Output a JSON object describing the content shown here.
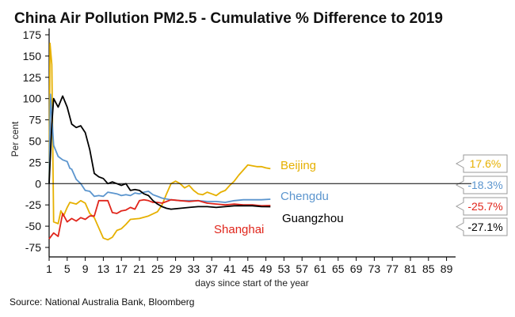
{
  "chart_data": {
    "type": "line",
    "title": "China Air Pollution PM2.5 - Cumulative % Difference to 2019",
    "xlabel": "days since start of the year",
    "ylabel": "Per cent",
    "xlim": [
      1,
      91
    ],
    "ylim": [
      -80,
      185
    ],
    "x_ticks": [
      1,
      5,
      9,
      13,
      17,
      21,
      25,
      29,
      33,
      37,
      41,
      45,
      49,
      53,
      57,
      61,
      65,
      69,
      73,
      77,
      81,
      85,
      89
    ],
    "y_ticks": [
      175,
      150,
      125,
      100,
      75,
      50,
      25,
      0,
      -25,
      -50,
      -75
    ],
    "series": [
      {
        "name": "Beijing",
        "color": "#E6B000",
        "end_value": "17.6%",
        "points": [
          [
            1,
            0
          ],
          [
            1.2,
            165
          ],
          [
            1.6,
            140
          ],
          [
            2,
            -45
          ],
          [
            3,
            -47
          ],
          [
            3.6,
            -32
          ],
          [
            4.2,
            -38
          ],
          [
            5,
            -28
          ],
          [
            5.6,
            -22
          ],
          [
            7,
            -24
          ],
          [
            8,
            -20
          ],
          [
            9,
            -23
          ],
          [
            10,
            -35
          ],
          [
            11,
            -40
          ],
          [
            12,
            -52
          ],
          [
            13,
            -64
          ],
          [
            14,
            -66
          ],
          [
            15,
            -63
          ],
          [
            16,
            -55
          ],
          [
            17,
            -53
          ],
          [
            18,
            -48
          ],
          [
            19,
            -42
          ],
          [
            21,
            -41
          ],
          [
            23,
            -38
          ],
          [
            25,
            -33
          ],
          [
            26,
            -25
          ],
          [
            27,
            -12
          ],
          [
            28,
            0
          ],
          [
            29,
            3
          ],
          [
            30,
            0
          ],
          [
            31,
            -5
          ],
          [
            32,
            -2
          ],
          [
            33,
            -8
          ],
          [
            34,
            -12
          ],
          [
            35,
            -13
          ],
          [
            36,
            -10
          ],
          [
            37,
            -12
          ],
          [
            38,
            -14
          ],
          [
            39,
            -10
          ],
          [
            40,
            -8
          ],
          [
            41,
            -2
          ],
          [
            42,
            3
          ],
          [
            43,
            10
          ],
          [
            44,
            16
          ],
          [
            45,
            22
          ],
          [
            46,
            21
          ],
          [
            47,
            20
          ],
          [
            48,
            20
          ],
          [
            49,
            18.5
          ],
          [
            50,
            17.6
          ]
        ]
      },
      {
        "name": "Chengdu",
        "color": "#5B95CE",
        "end_value": "-18.3%",
        "points": [
          [
            1,
            0
          ],
          [
            1.3,
            105
          ],
          [
            2,
            45
          ],
          [
            3,
            32
          ],
          [
            4,
            28
          ],
          [
            5,
            26
          ],
          [
            5.6,
            18
          ],
          [
            6,
            17
          ],
          [
            7,
            5
          ],
          [
            8,
            0
          ],
          [
            9,
            -8
          ],
          [
            10,
            -9
          ],
          [
            11,
            -15
          ],
          [
            12,
            -14
          ],
          [
            13,
            -15
          ],
          [
            14,
            -10
          ],
          [
            15,
            -11
          ],
          [
            16,
            -12
          ],
          [
            17,
            -14
          ],
          [
            18,
            -13
          ],
          [
            19,
            -14
          ],
          [
            20,
            -11
          ],
          [
            21,
            -12
          ],
          [
            22,
            -10
          ],
          [
            23,
            -9
          ],
          [
            24,
            -13
          ],
          [
            25,
            -15
          ],
          [
            26,
            -17
          ],
          [
            27,
            -18
          ],
          [
            28,
            -19
          ],
          [
            30,
            -20
          ],
          [
            32,
            -20
          ],
          [
            34,
            -20
          ],
          [
            36,
            -21
          ],
          [
            38,
            -21
          ],
          [
            40,
            -22
          ],
          [
            42,
            -20
          ],
          [
            44,
            -19
          ],
          [
            46,
            -19
          ],
          [
            48,
            -19
          ],
          [
            50,
            -18.3
          ]
        ]
      },
      {
        "name": "Shanghai",
        "color": "#E0251B",
        "end_value": "-25.7%",
        "points": [
          [
            1,
            -65
          ],
          [
            2,
            -58
          ],
          [
            3,
            -62
          ],
          [
            4,
            -35
          ],
          [
            5,
            -45
          ],
          [
            6,
            -41
          ],
          [
            7,
            -44
          ],
          [
            8,
            -40
          ],
          [
            9,
            -42
          ],
          [
            10,
            -38
          ],
          [
            11,
            -38
          ],
          [
            12,
            -20
          ],
          [
            13,
            -20
          ],
          [
            14,
            -20
          ],
          [
            15,
            -34
          ],
          [
            16,
            -35
          ],
          [
            17,
            -32
          ],
          [
            18,
            -31
          ],
          [
            19,
            -28
          ],
          [
            20,
            -30
          ],
          [
            21,
            -20
          ],
          [
            22,
            -19
          ],
          [
            23,
            -20
          ],
          [
            24,
            -22
          ],
          [
            25,
            -22
          ],
          [
            26,
            -23
          ],
          [
            27,
            -21
          ],
          [
            28,
            -19
          ],
          [
            30,
            -20
          ],
          [
            32,
            -21
          ],
          [
            34,
            -20
          ],
          [
            36,
            -23
          ],
          [
            38,
            -24
          ],
          [
            40,
            -25
          ],
          [
            42,
            -24
          ],
          [
            44,
            -25
          ],
          [
            46,
            -25
          ],
          [
            48,
            -26
          ],
          [
            50,
            -25.7
          ]
        ]
      },
      {
        "name": "Guangzhou",
        "color": "#000000",
        "end_value": "-27.1%",
        "points": [
          [
            1,
            0
          ],
          [
            1.6,
            70
          ],
          [
            2,
            100
          ],
          [
            3,
            90
          ],
          [
            4,
            103
          ],
          [
            5,
            90
          ],
          [
            6,
            70
          ],
          [
            7,
            66
          ],
          [
            8,
            68
          ],
          [
            9,
            60
          ],
          [
            10,
            40
          ],
          [
            11,
            12
          ],
          [
            12,
            8
          ],
          [
            13,
            6
          ],
          [
            14,
            0
          ],
          [
            15,
            2
          ],
          [
            16,
            0
          ],
          [
            17,
            -2
          ],
          [
            18,
            0
          ],
          [
            19,
            -8
          ],
          [
            20,
            -7
          ],
          [
            21,
            -8
          ],
          [
            22,
            -12
          ],
          [
            23,
            -14
          ],
          [
            24,
            -20
          ],
          [
            25,
            -24
          ],
          [
            26,
            -27
          ],
          [
            27,
            -29
          ],
          [
            28,
            -30
          ],
          [
            30,
            -29
          ],
          [
            32,
            -28
          ],
          [
            34,
            -27
          ],
          [
            36,
            -27
          ],
          [
            38,
            -28
          ],
          [
            40,
            -27
          ],
          [
            42,
            -26
          ],
          [
            44,
            -26
          ],
          [
            46,
            -26
          ],
          [
            48,
            -27
          ],
          [
            50,
            -27.1
          ]
        ]
      }
    ],
    "series_labels": [
      "Beijing",
      "Chengdu",
      "Guangzhou",
      "Shanghai"
    ]
  },
  "source": "Source: National Australia Bank, Bloomberg"
}
